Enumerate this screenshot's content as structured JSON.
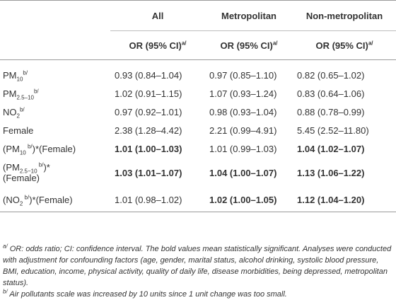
{
  "header": {
    "columns": [
      "All",
      "Metropolitan",
      "Non-metropolitan"
    ],
    "subheader": "OR (95% CI)",
    "subheader_sup": "a/"
  },
  "rows": [
    {
      "label_main": "PM",
      "label_sub": "10",
      "label_sup": "b/",
      "label_tail": "",
      "label_line2": "",
      "values": [
        "0.93 (0.84–1.04)",
        "0.97 (0.85–1.10)",
        "0.82 (0.65–1.02)"
      ],
      "bold": [
        false,
        false,
        false
      ]
    },
    {
      "label_main": "PM",
      "label_sub": "2.5–10",
      "label_sup": "b/",
      "label_tail": "",
      "label_line2": "",
      "values": [
        "1.02 (0.91–1.15)",
        "1.07 (0.93–1.24)",
        "0.83 (0.64–1.06)"
      ],
      "bold": [
        false,
        false,
        false
      ]
    },
    {
      "label_main": "NO",
      "label_sub": "2",
      "label_sup": "b/",
      "label_tail": "",
      "label_line2": "",
      "values": [
        "0.97 (0.92–1.01)",
        "0.98 (0.93–1.04)",
        "0.88 (0.78–0.99)"
      ],
      "bold": [
        false,
        false,
        false
      ]
    },
    {
      "label_main": "Female",
      "label_sub": "",
      "label_sup": "",
      "label_tail": "",
      "label_line2": "",
      "values": [
        "2.38 (1.28–4.42)",
        "2.21 (0.99–4.91)",
        "5.45 (2.52–11.80)"
      ],
      "bold": [
        false,
        false,
        false
      ]
    },
    {
      "label_main": "(PM",
      "label_sub": "10",
      "label_sup": " b/",
      "label_tail": ")*(Female)",
      "label_line2": "",
      "values": [
        "1.01 (1.00–1.03)",
        "1.01 (0.99–1.03)",
        "1.04 (1.02–1.07)"
      ],
      "bold": [
        true,
        false,
        true
      ]
    },
    {
      "label_main": "(PM",
      "label_sub": "2.5−10",
      "label_sup": " b/",
      "label_tail": ")*",
      "label_line2": "(Female)",
      "values": [
        "1.03 (1.01–1.07)",
        "1.04 (1.00–1.07)",
        "1.13 (1.06–1.22)"
      ],
      "bold": [
        true,
        true,
        true
      ]
    },
    {
      "label_main": "(NO",
      "label_sub": "2",
      "label_sup": " b/",
      "label_tail": ")*(Female)",
      "label_line2": "",
      "values": [
        "1.01 (0.98–1.02)",
        "1.02 (1.00–1.05)",
        "1.12 (1.04–1.20)"
      ],
      "bold": [
        false,
        true,
        true
      ]
    }
  ],
  "notes": {
    "a_mark": "a/",
    "a_text": " OR: odds ratio; CI: confidence interval. The bold values mean statistically significant. Analyses were conducted with adjustment for confounding factors (age, gender, marital status, alcohol drinking, systolic blood pressure, BMI, education, income, physical activity, quality of daily life, disease morbidities, being depressed, metropolitan status).",
    "b_mark": "b/",
    "b_text": " Air pollutants scale was increased by 10 units since 1 unit change was too small."
  }
}
